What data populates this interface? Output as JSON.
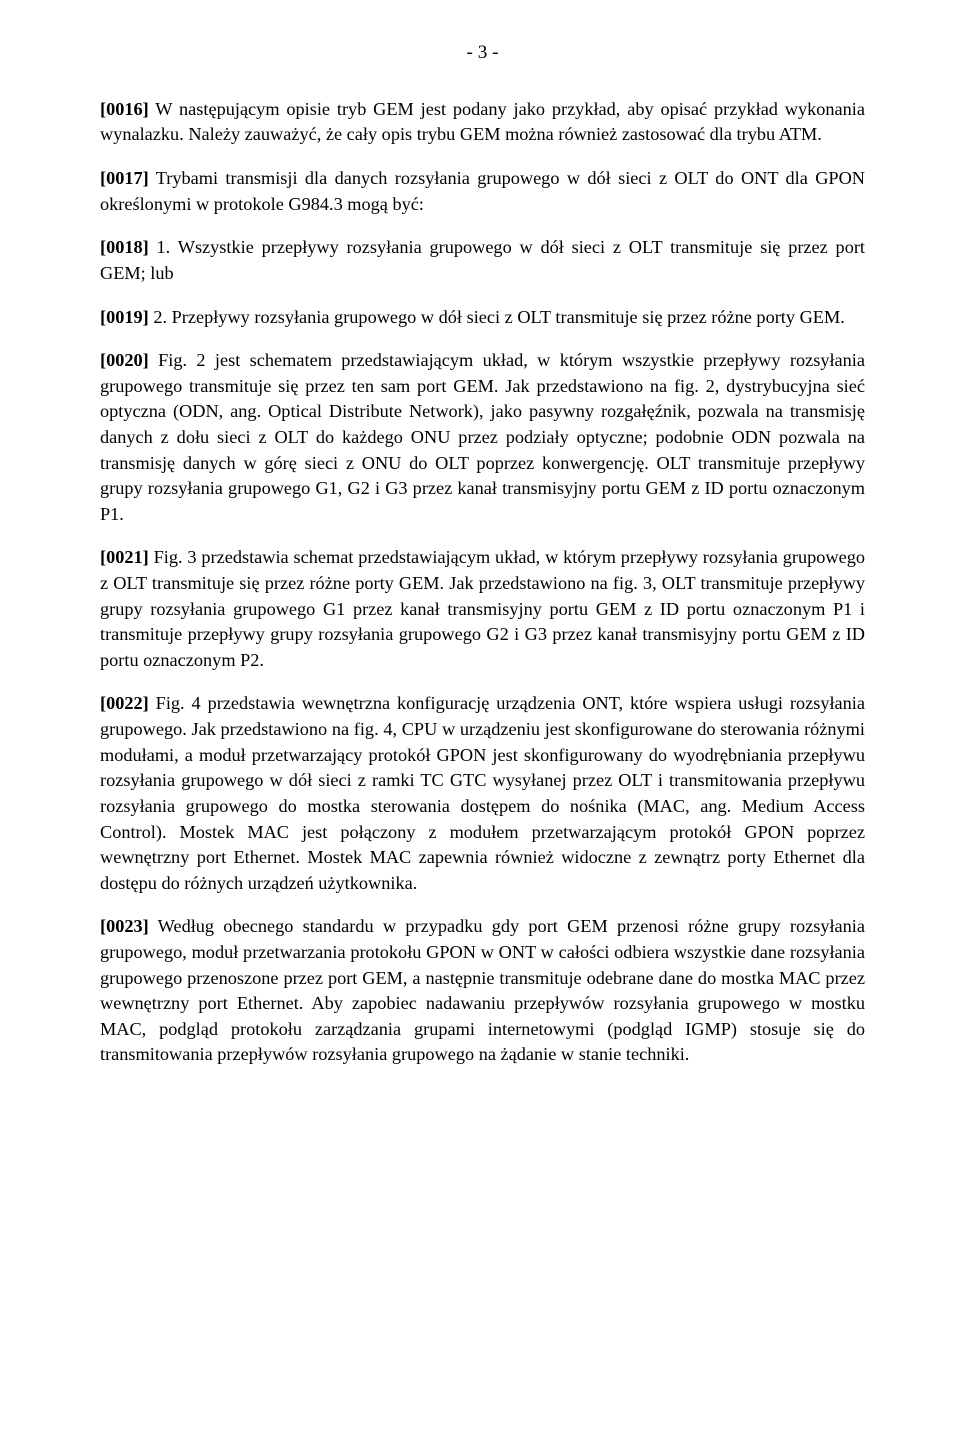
{
  "pageNumber": "- 3 -",
  "paragraphs": [
    {
      "label": "[0016]",
      "text": " W następującym opisie tryb GEM jest podany jako przykład, aby opisać przykład wykonania wynalazku. Należy zauważyć, że cały opis trybu GEM można również zastosować dla trybu ATM."
    },
    {
      "label": "[0017]",
      "text": " Trybami transmisji dla danych rozsyłania grupowego w dół sieci z OLT do ONT dla GPON określonymi w protokole G984.3 mogą być:"
    },
    {
      "label": "[0018]",
      "text": " 1. Wszystkie przepływy rozsyłania grupowego w dół sieci z OLT transmituje się przez port GEM; lub"
    },
    {
      "label": "[0019]",
      "text": " 2. Przepływy rozsyłania grupowego w dół sieci z OLT transmituje się przez różne porty GEM."
    },
    {
      "label": "[0020]",
      "text": " Fig. 2 jest schematem przedstawiającym układ, w którym wszystkie przepływy rozsyłania grupowego transmituje się przez ten sam port GEM. Jak przedstawiono na fig. 2, dystrybucyjna sieć optyczna (ODN, ang. Optical Distribute Network), jako pasywny rozgałęźnik, pozwala na transmisję danych z dołu sieci z OLT do każdego ONU przez podziały optyczne; podobnie ODN pozwala na transmisję danych w górę sieci z ONU do OLT poprzez konwergencję. OLT transmituje przepływy grupy rozsyłania grupowego G1, G2 i G3 przez kanał transmisyjny portu GEM z ID portu oznaczonym P1."
    },
    {
      "label": "[0021]",
      "text": " Fig. 3 przedstawia schemat przedstawiającym układ, w którym przepływy rozsyłania grupowego z OLT transmituje się przez różne porty GEM. Jak przedstawiono na fig. 3, OLT transmituje przepływy grupy rozsyłania grupowego G1 przez kanał transmisyjny portu GEM z ID portu oznaczonym P1 i transmituje przepływy grupy rozsyłania grupowego G2 i G3 przez kanał transmisyjny portu GEM z ID portu oznaczonym P2."
    },
    {
      "label": "[0022]",
      "text": " Fig. 4 przedstawia wewnętrzna konfigurację urządzenia ONT, które wspiera usługi rozsyłania grupowego. Jak przedstawiono na fig. 4, CPU w urządzeniu jest skonfigurowane do sterowania różnymi modułami, a moduł przetwarzający protokół GPON jest skonfigurowany do wyodrębniania przepływu rozsyłania grupowego w dół sieci z ramki TC GTC wysyłanej przez OLT i transmitowania przepływu rozsyłania grupowego do mostka sterowania dostępem do nośnika (MAC, ang. Medium Access Control). Mostek MAC jest połączony z modułem przetwarzającym protokół GPON poprzez wewnętrzny port Ethernet. Mostek MAC zapewnia również widoczne z zewnątrz porty Ethernet dla dostępu do różnych urządzeń użytkownika."
    },
    {
      "label": "[0023]",
      "text": " Według obecnego standardu w przypadku gdy port GEM przenosi różne grupy rozsyłania grupowego, moduł przetwarzania protokołu GPON w ONT w całości odbiera wszystkie dane rozsyłania grupowego przenoszone przez port GEM, a następnie transmituje odebrane dane do mostka MAC przez wewnętrzny port Ethernet. Aby zapobiec nadawaniu przepływów rozsyłania grupowego w mostku MAC, podgląd protokołu zarządzania grupami internetowymi (podgląd IGMP) stosuje się do transmitowania przepływów rozsyłania grupowego na żądanie w stanie techniki."
    }
  ]
}
